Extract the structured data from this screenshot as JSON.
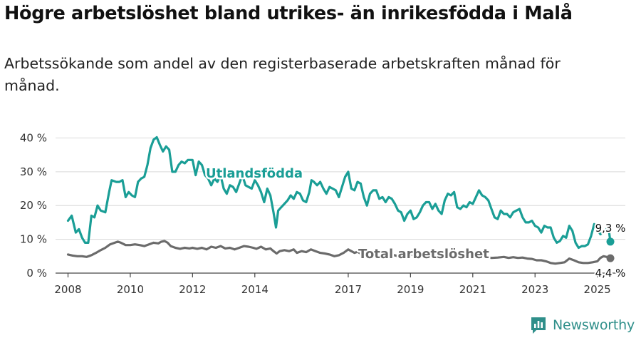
{
  "title": "Högre arbetslöshet bland utrikes- än inrikesfödda i Malå",
  "subtitle": "Arbetssökande som andel av den registerbaserade arbetskraften månad för månad.",
  "brand": {
    "name": "Newsworthy"
  },
  "colors": {
    "foreign": "#1a9e96",
    "total": "#6b6b6b",
    "grid": "#d9d9d9",
    "axis": "#444444",
    "brand": "#2f8f8a"
  },
  "chart_data": {
    "type": "line",
    "ylim": [
      0,
      42
    ],
    "xlim": [
      2007.6,
      2025.9
    ],
    "yticks": [
      0,
      10,
      20,
      30,
      40
    ],
    "ytick_labels": [
      "0 %",
      "10 %",
      "20 %",
      "30 %",
      "40 %"
    ],
    "xticks": [
      2008,
      2010,
      2012,
      2014,
      2017,
      2019,
      2021,
      2023,
      2025
    ],
    "xtick_labels": [
      "2008",
      "2010",
      "2012",
      "2014",
      "2017",
      "2019",
      "2021",
      "2023",
      "2025"
    ],
    "grid": true,
    "series": [
      {
        "name": "Utlandsfödda",
        "end_label": "9,3 %",
        "points": [
          [
            2008.0,
            15.5
          ],
          [
            2008.12,
            17.0
          ],
          [
            2008.25,
            12.0
          ],
          [
            2008.35,
            13.0
          ],
          [
            2008.45,
            10.5
          ],
          [
            2008.55,
            9.0
          ],
          [
            2008.65,
            9.0
          ],
          [
            2008.75,
            17.0
          ],
          [
            2008.85,
            16.5
          ],
          [
            2008.95,
            20.0
          ],
          [
            2009.05,
            18.5
          ],
          [
            2009.2,
            18.0
          ],
          [
            2009.32,
            24.0
          ],
          [
            2009.4,
            27.5
          ],
          [
            2009.55,
            27.0
          ],
          [
            2009.65,
            27.0
          ],
          [
            2009.75,
            27.5
          ],
          [
            2009.85,
            22.5
          ],
          [
            2009.95,
            24.0
          ],
          [
            2010.05,
            23.0
          ],
          [
            2010.15,
            22.5
          ],
          [
            2010.25,
            27.0
          ],
          [
            2010.35,
            28.0
          ],
          [
            2010.45,
            28.5
          ],
          [
            2010.55,
            32.0
          ],
          [
            2010.65,
            37.0
          ],
          [
            2010.75,
            39.5
          ],
          [
            2010.85,
            40.2
          ],
          [
            2010.95,
            38.0
          ],
          [
            2011.05,
            36.0
          ],
          [
            2011.15,
            37.5
          ],
          [
            2011.25,
            36.5
          ],
          [
            2011.35,
            30.0
          ],
          [
            2011.45,
            30.0
          ],
          [
            2011.55,
            32.0
          ],
          [
            2011.65,
            33.0
          ],
          [
            2011.75,
            32.5
          ],
          [
            2011.85,
            33.5
          ],
          [
            2012.0,
            33.5
          ],
          [
            2012.1,
            29.0
          ],
          [
            2012.2,
            33.0
          ],
          [
            2012.3,
            32.0
          ],
          [
            2012.4,
            29.0
          ],
          [
            2012.5,
            28.0
          ],
          [
            2012.6,
            26.0
          ],
          [
            2012.7,
            28.0
          ],
          [
            2012.8,
            27.0
          ],
          [
            2012.9,
            29.0
          ],
          [
            2013.0,
            25.0
          ],
          [
            2013.1,
            23.5
          ],
          [
            2013.2,
            26.0
          ],
          [
            2013.3,
            25.5
          ],
          [
            2013.4,
            24.0
          ],
          [
            2013.5,
            26.5
          ],
          [
            2013.6,
            29.0
          ],
          [
            2013.7,
            26.0
          ],
          [
            2013.8,
            25.5
          ],
          [
            2013.9,
            25.0
          ],
          [
            2014.0,
            27.5
          ],
          [
            2014.1,
            26.0
          ],
          [
            2014.2,
            24.0
          ],
          [
            2014.3,
            21.0
          ],
          [
            2014.4,
            25.0
          ],
          [
            2014.5,
            23.0
          ],
          [
            2014.6,
            18.0
          ],
          [
            2014.68,
            13.5
          ],
          [
            2014.75,
            18.5
          ],
          [
            2014.85,
            19.5
          ],
          [
            2014.95,
            20.5
          ],
          [
            2015.05,
            21.5
          ],
          [
            2015.15,
            23.0
          ],
          [
            2015.25,
            22.0
          ],
          [
            2015.35,
            24.0
          ],
          [
            2015.45,
            23.5
          ],
          [
            2015.55,
            21.5
          ],
          [
            2015.65,
            21.0
          ],
          [
            2015.75,
            24.0
          ],
          [
            2015.82,
            27.5
          ],
          [
            2015.9,
            27.0
          ],
          [
            2016.0,
            26.0
          ],
          [
            2016.1,
            27.0
          ],
          [
            2016.2,
            25.0
          ],
          [
            2016.3,
            23.5
          ],
          [
            2016.4,
            25.5
          ],
          [
            2016.5,
            25.0
          ],
          [
            2016.6,
            24.5
          ],
          [
            2016.7,
            22.5
          ],
          [
            2016.8,
            25.5
          ],
          [
            2016.9,
            28.5
          ],
          [
            2017.0,
            30.0
          ],
          [
            2017.1,
            25.0
          ],
          [
            2017.2,
            24.5
          ],
          [
            2017.3,
            27.0
          ],
          [
            2017.4,
            26.5
          ],
          [
            2017.5,
            22.5
          ],
          [
            2017.6,
            20.0
          ],
          [
            2017.7,
            23.5
          ],
          [
            2017.8,
            24.5
          ],
          [
            2017.9,
            24.5
          ],
          [
            2018.0,
            22.0
          ],
          [
            2018.1,
            22.5
          ],
          [
            2018.2,
            21.0
          ],
          [
            2018.3,
            22.5
          ],
          [
            2018.4,
            22.0
          ],
          [
            2018.5,
            20.5
          ],
          [
            2018.6,
            18.5
          ],
          [
            2018.7,
            18.0
          ],
          [
            2018.8,
            15.5
          ],
          [
            2018.9,
            17.5
          ],
          [
            2019.0,
            18.5
          ],
          [
            2019.1,
            16.0
          ],
          [
            2019.2,
            16.5
          ],
          [
            2019.3,
            18.0
          ],
          [
            2019.4,
            20.0
          ],
          [
            2019.5,
            21.0
          ],
          [
            2019.6,
            21.0
          ],
          [
            2019.7,
            19.0
          ],
          [
            2019.8,
            20.5
          ],
          [
            2019.9,
            18.5
          ],
          [
            2020.0,
            17.5
          ],
          [
            2020.1,
            21.5
          ],
          [
            2020.2,
            23.5
          ],
          [
            2020.3,
            23.0
          ],
          [
            2020.4,
            24.0
          ],
          [
            2020.5,
            19.5
          ],
          [
            2020.6,
            19.0
          ],
          [
            2020.7,
            20.0
          ],
          [
            2020.8,
            19.5
          ],
          [
            2020.9,
            21.0
          ],
          [
            2021.0,
            20.5
          ],
          [
            2021.1,
            22.5
          ],
          [
            2021.2,
            24.5
          ],
          [
            2021.3,
            23.0
          ],
          [
            2021.4,
            22.5
          ],
          [
            2021.5,
            21.5
          ],
          [
            2021.6,
            19.0
          ],
          [
            2021.7,
            16.5
          ],
          [
            2021.8,
            16.0
          ],
          [
            2021.9,
            18.5
          ],
          [
            2022.0,
            17.5
          ],
          [
            2022.1,
            17.5
          ],
          [
            2022.2,
            16.5
          ],
          [
            2022.3,
            18.0
          ],
          [
            2022.4,
            18.5
          ],
          [
            2022.5,
            19.0
          ],
          [
            2022.6,
            16.5
          ],
          [
            2022.7,
            15.0
          ],
          [
            2022.8,
            15.0
          ],
          [
            2022.9,
            15.5
          ],
          [
            2023.0,
            14.0
          ],
          [
            2023.1,
            13.5
          ],
          [
            2023.2,
            12.0
          ],
          [
            2023.3,
            14.0
          ],
          [
            2023.4,
            13.5
          ],
          [
            2023.5,
            13.5
          ],
          [
            2023.6,
            10.5
          ],
          [
            2023.7,
            9.0
          ],
          [
            2023.8,
            9.5
          ],
          [
            2023.9,
            11.0
          ],
          [
            2024.0,
            10.5
          ],
          [
            2024.1,
            14.0
          ],
          [
            2024.2,
            12.5
          ],
          [
            2024.3,
            9.0
          ],
          [
            2024.4,
            7.5
          ],
          [
            2024.5,
            8.0
          ],
          [
            2024.6,
            8.0
          ],
          [
            2024.7,
            8.5
          ],
          [
            2024.8,
            11.0
          ],
          [
            2024.9,
            14.5
          ],
          [
            2025.0,
            13.0
          ],
          [
            2025.1,
            11.5
          ],
          [
            2025.2,
            12.0
          ],
          [
            2025.3,
            13.0
          ],
          [
            2025.35,
            14.0
          ],
          [
            2025.42,
            9.3
          ]
        ]
      },
      {
        "name": "Total arbetslöshet",
        "end_label": "4,4 %",
        "points": [
          [
            2008.0,
            5.5
          ],
          [
            2008.15,
            5.2
          ],
          [
            2008.3,
            5.0
          ],
          [
            2008.45,
            5.0
          ],
          [
            2008.6,
            4.8
          ],
          [
            2008.75,
            5.3
          ],
          [
            2008.9,
            6.0
          ],
          [
            2009.05,
            6.8
          ],
          [
            2009.2,
            7.5
          ],
          [
            2009.35,
            8.5
          ],
          [
            2009.5,
            9.0
          ],
          [
            2009.6,
            9.3
          ],
          [
            2009.7,
            9.0
          ],
          [
            2009.85,
            8.3
          ],
          [
            2010.0,
            8.3
          ],
          [
            2010.15,
            8.5
          ],
          [
            2010.3,
            8.3
          ],
          [
            2010.45,
            8.0
          ],
          [
            2010.6,
            8.5
          ],
          [
            2010.75,
            9.0
          ],
          [
            2010.9,
            8.8
          ],
          [
            2011.0,
            9.3
          ],
          [
            2011.1,
            9.5
          ],
          [
            2011.2,
            9.0
          ],
          [
            2011.3,
            8.0
          ],
          [
            2011.45,
            7.5
          ],
          [
            2011.6,
            7.2
          ],
          [
            2011.75,
            7.5
          ],
          [
            2011.9,
            7.3
          ],
          [
            2012.0,
            7.5
          ],
          [
            2012.15,
            7.2
          ],
          [
            2012.3,
            7.5
          ],
          [
            2012.45,
            7.0
          ],
          [
            2012.6,
            7.8
          ],
          [
            2012.75,
            7.5
          ],
          [
            2012.9,
            8.0
          ],
          [
            2013.05,
            7.3
          ],
          [
            2013.2,
            7.5
          ],
          [
            2013.35,
            7.0
          ],
          [
            2013.5,
            7.5
          ],
          [
            2013.65,
            8.0
          ],
          [
            2013.8,
            7.8
          ],
          [
            2013.95,
            7.5
          ],
          [
            2014.05,
            7.2
          ],
          [
            2014.2,
            7.8
          ],
          [
            2014.35,
            7.0
          ],
          [
            2014.5,
            7.3
          ],
          [
            2014.6,
            6.5
          ],
          [
            2014.7,
            5.8
          ],
          [
            2014.8,
            6.5
          ],
          [
            2014.95,
            6.8
          ],
          [
            2015.1,
            6.5
          ],
          [
            2015.25,
            7.0
          ],
          [
            2015.35,
            6.0
          ],
          [
            2015.5,
            6.5
          ],
          [
            2015.65,
            6.2
          ],
          [
            2015.8,
            7.0
          ],
          [
            2015.95,
            6.5
          ],
          [
            2016.1,
            6.0
          ],
          [
            2016.25,
            5.8
          ],
          [
            2016.4,
            5.5
          ],
          [
            2016.55,
            5.0
          ],
          [
            2016.7,
            5.3
          ],
          [
            2016.85,
            6.0
          ],
          [
            2017.0,
            7.0
          ],
          [
            2017.1,
            6.5
          ],
          [
            2017.2,
            6.0
          ],
          [
            2017.3,
            6.3
          ],
          [
            2017.45,
            5.5
          ],
          [
            2017.6,
            5.8
          ],
          [
            2017.8,
            5.5
          ],
          [
            2018.0,
            5.6
          ],
          [
            2018.2,
            5.3
          ],
          [
            2018.4,
            5.5
          ],
          [
            2018.6,
            5.0
          ],
          [
            2018.8,
            5.3
          ],
          [
            2019.0,
            5.5
          ],
          [
            2019.2,
            5.0
          ],
          [
            2019.4,
            5.5
          ],
          [
            2019.6,
            5.2
          ],
          [
            2019.8,
            5.0
          ],
          [
            2020.0,
            5.5
          ],
          [
            2020.2,
            5.8
          ],
          [
            2020.4,
            5.5
          ],
          [
            2020.6,
            5.0
          ],
          [
            2020.8,
            5.3
          ],
          [
            2021.0,
            5.5
          ],
          [
            2021.2,
            5.0
          ],
          [
            2021.4,
            4.8
          ],
          [
            2021.6,
            4.5
          ],
          [
            2021.8,
            4.6
          ],
          [
            2022.0,
            4.8
          ],
          [
            2022.15,
            4.5
          ],
          [
            2022.3,
            4.7
          ],
          [
            2022.45,
            4.5
          ],
          [
            2022.6,
            4.6
          ],
          [
            2022.75,
            4.3
          ],
          [
            2022.9,
            4.2
          ],
          [
            2023.05,
            3.8
          ],
          [
            2023.2,
            3.8
          ],
          [
            2023.35,
            3.5
          ],
          [
            2023.5,
            3.0
          ],
          [
            2023.65,
            2.8
          ],
          [
            2023.8,
            3.0
          ],
          [
            2023.95,
            3.2
          ],
          [
            2024.1,
            4.3
          ],
          [
            2024.25,
            3.8
          ],
          [
            2024.4,
            3.2
          ],
          [
            2024.55,
            3.0
          ],
          [
            2024.7,
            3.0
          ],
          [
            2024.85,
            3.2
          ],
          [
            2025.0,
            3.5
          ],
          [
            2025.1,
            4.5
          ],
          [
            2025.2,
            5.0
          ],
          [
            2025.3,
            4.8
          ],
          [
            2025.42,
            4.4
          ]
        ]
      }
    ]
  }
}
